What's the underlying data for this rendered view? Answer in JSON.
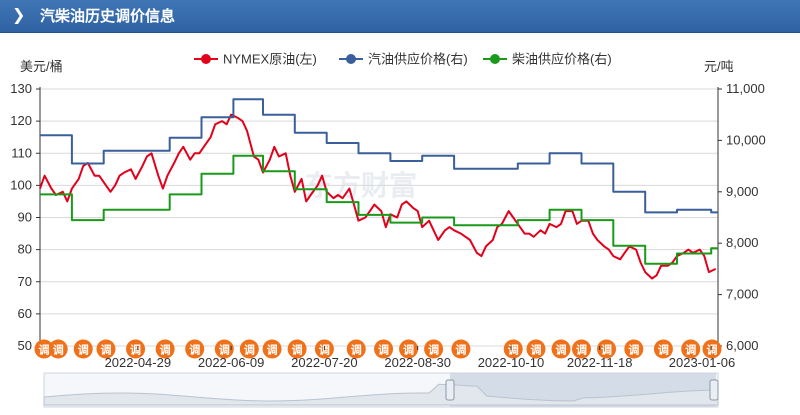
{
  "header": {
    "title": "汽柴油历史调价信息",
    "chevron_icon": "chevron-right-icon"
  },
  "colors": {
    "header": "#3170b3",
    "nymex": "#e3001b",
    "gasoline": "#3a5f9b",
    "diesel": "#1a9a1a",
    "grid": "#d9d9d9",
    "marker": "#f0711a"
  },
  "watermark": "东方财富",
  "marker_label": "调",
  "chart_data": {
    "type": "line",
    "left_axis": {
      "unit": "美元/桶",
      "ylim": [
        50,
        130
      ],
      "ticks": [
        50,
        60,
        70,
        80,
        90,
        100,
        110,
        120,
        130
      ]
    },
    "right_axis": {
      "unit": "元/吨",
      "ylim": [
        6000,
        11000
      ],
      "ticks": [
        "6,000",
        "7,000",
        "8,000",
        "9,000",
        "10,000",
        "11,000"
      ]
    },
    "x_labels": [
      "2022-04-29",
      "2022-06-09",
      "2022-07-20",
      "2022-08-30",
      "2022-10-10",
      "2022-11-18",
      "2023-01-06"
    ],
    "x_range": [
      "2022-03-17",
      "2023-01-09"
    ],
    "legend": {
      "position": "top",
      "items": [
        "NYMEX原油(左)",
        "汽油供应价格(右)",
        "柴油供应价格(右)"
      ]
    },
    "grid": true,
    "series": [
      {
        "name": "NYMEX原油(左)",
        "axis": "left",
        "shape": "line",
        "points": [
          [
            "2022-03-17",
            99
          ],
          [
            "2022-03-19",
            103
          ],
          [
            "2022-03-22",
            99
          ],
          [
            "2022-03-24",
            97
          ],
          [
            "2022-03-27",
            98
          ],
          [
            "2022-03-29",
            95
          ],
          [
            "2022-03-31",
            99
          ],
          [
            "2022-04-03",
            102
          ],
          [
            "2022-04-05",
            106
          ],
          [
            "2022-04-07",
            107
          ],
          [
            "2022-04-10",
            103
          ],
          [
            "2022-04-12",
            103
          ],
          [
            "2022-04-14",
            101
          ],
          [
            "2022-04-17",
            98
          ],
          [
            "2022-04-19",
            100
          ],
          [
            "2022-04-21",
            103
          ],
          [
            "2022-04-23",
            104
          ],
          [
            "2022-04-26",
            105
          ],
          [
            "2022-04-28",
            102
          ],
          [
            "2022-05-01",
            106
          ],
          [
            "2022-05-03",
            109
          ],
          [
            "2022-05-05",
            110
          ],
          [
            "2022-05-08",
            103
          ],
          [
            "2022-05-10",
            99
          ],
          [
            "2022-05-12",
            103
          ],
          [
            "2022-05-15",
            107
          ],
          [
            "2022-05-17",
            110
          ],
          [
            "2022-05-19",
            112
          ],
          [
            "2022-05-22",
            108
          ],
          [
            "2022-05-24",
            110
          ],
          [
            "2022-05-26",
            110
          ],
          [
            "2022-05-29",
            113
          ],
          [
            "2022-05-31",
            115
          ],
          [
            "2022-06-02",
            119
          ],
          [
            "2022-06-05",
            120
          ],
          [
            "2022-06-07",
            119
          ],
          [
            "2022-06-09",
            122
          ],
          [
            "2022-06-12",
            121
          ],
          [
            "2022-06-14",
            120
          ],
          [
            "2022-06-16",
            117
          ],
          [
            "2022-06-19",
            109
          ],
          [
            "2022-06-21",
            108
          ],
          [
            "2022-06-23",
            104
          ],
          [
            "2022-06-26",
            108
          ],
          [
            "2022-06-28",
            112
          ],
          [
            "2022-06-30",
            109
          ],
          [
            "2022-07-03",
            110
          ],
          [
            "2022-07-05",
            103
          ],
          [
            "2022-07-07",
            98
          ],
          [
            "2022-07-10",
            102
          ],
          [
            "2022-07-12",
            95
          ],
          [
            "2022-07-14",
            97
          ],
          [
            "2022-07-17",
            100
          ],
          [
            "2022-07-19",
            103
          ],
          [
            "2022-07-21",
            98
          ],
          [
            "2022-07-24",
            96
          ],
          [
            "2022-07-26",
            97
          ],
          [
            "2022-07-28",
            96
          ],
          [
            "2022-07-31",
            99
          ],
          [
            "2022-08-02",
            94
          ],
          [
            "2022-08-04",
            89
          ],
          [
            "2022-08-07",
            90
          ],
          [
            "2022-08-09",
            92
          ],
          [
            "2022-08-11",
            94
          ],
          [
            "2022-08-14",
            92
          ],
          [
            "2022-08-16",
            87
          ],
          [
            "2022-08-18",
            91
          ],
          [
            "2022-08-21",
            90
          ],
          [
            "2022-08-23",
            94
          ],
          [
            "2022-08-25",
            95
          ],
          [
            "2022-08-28",
            93
          ],
          [
            "2022-08-30",
            92
          ],
          [
            "2022-09-01",
            87
          ],
          [
            "2022-09-04",
            89
          ],
          [
            "2022-09-06",
            86
          ],
          [
            "2022-09-08",
            83
          ],
          [
            "2022-09-11",
            86
          ],
          [
            "2022-09-13",
            87
          ],
          [
            "2022-09-15",
            86
          ],
          [
            "2022-09-18",
            85
          ],
          [
            "2022-09-20",
            84
          ],
          [
            "2022-09-22",
            83
          ],
          [
            "2022-09-25",
            79
          ],
          [
            "2022-09-27",
            78
          ],
          [
            "2022-09-29",
            81
          ],
          [
            "2022-10-02",
            83
          ],
          [
            "2022-10-04",
            87
          ],
          [
            "2022-10-06",
            88
          ],
          [
            "2022-10-09",
            92
          ],
          [
            "2022-10-11",
            90
          ],
          [
            "2022-10-13",
            88
          ],
          [
            "2022-10-16",
            85
          ],
          [
            "2022-10-18",
            85
          ],
          [
            "2022-10-20",
            84
          ],
          [
            "2022-10-23",
            86
          ],
          [
            "2022-10-25",
            85
          ],
          [
            "2022-10-27",
            88
          ],
          [
            "2022-10-30",
            87
          ],
          [
            "2022-11-01",
            88
          ],
          [
            "2022-11-03",
            92
          ],
          [
            "2022-11-06",
            92
          ],
          [
            "2022-11-08",
            88
          ],
          [
            "2022-11-10",
            89
          ],
          [
            "2022-11-13",
            89
          ],
          [
            "2022-11-15",
            85
          ],
          [
            "2022-11-17",
            83
          ],
          [
            "2022-11-20",
            81
          ],
          [
            "2022-11-22",
            80
          ],
          [
            "2022-11-24",
            78
          ],
          [
            "2022-11-27",
            77
          ],
          [
            "2022-11-29",
            79
          ],
          [
            "2022-12-01",
            81
          ],
          [
            "2022-12-04",
            80
          ],
          [
            "2022-12-06",
            76
          ],
          [
            "2022-12-08",
            73
          ],
          [
            "2022-12-11",
            71
          ],
          [
            "2022-12-13",
            72
          ],
          [
            "2022-12-15",
            75
          ],
          [
            "2022-12-18",
            75
          ],
          [
            "2022-12-20",
            76
          ],
          [
            "2022-12-22",
            78
          ],
          [
            "2022-12-25",
            79
          ],
          [
            "2022-12-27",
            80
          ],
          [
            "2022-12-29",
            79
          ],
          [
            "2023-01-01",
            80
          ],
          [
            "2023-01-03",
            78
          ],
          [
            "2023-01-05",
            73
          ],
          [
            "2023-01-08",
            74
          ]
        ]
      },
      {
        "name": "汽油供应价格(右)",
        "axis": "right",
        "shape": "step",
        "points": [
          [
            "2022-03-17",
            10100
          ],
          [
            "2022-03-31",
            9550
          ],
          [
            "2022-04-14",
            9800
          ],
          [
            "2022-05-13",
            10050
          ],
          [
            "2022-05-27",
            10450
          ],
          [
            "2022-06-10",
            10800
          ],
          [
            "2022-06-23",
            10500
          ],
          [
            "2022-07-07",
            10150
          ],
          [
            "2022-07-21",
            9950
          ],
          [
            "2022-08-04",
            9750
          ],
          [
            "2022-08-18",
            9600
          ],
          [
            "2022-09-01",
            9700
          ],
          [
            "2022-09-15",
            9450
          ],
          [
            "2022-10-13",
            9550
          ],
          [
            "2022-10-27",
            9750
          ],
          [
            "2022-11-10",
            9550
          ],
          [
            "2022-11-24",
            9000
          ],
          [
            "2022-12-08",
            8600
          ],
          [
            "2022-12-22",
            8650
          ],
          [
            "2023-01-06",
            8600
          ]
        ]
      },
      {
        "name": "柴油供应价格(右)",
        "axis": "right",
        "shape": "step",
        "points": [
          [
            "2022-03-17",
            8950
          ],
          [
            "2022-03-31",
            8450
          ],
          [
            "2022-04-14",
            8650
          ],
          [
            "2022-05-13",
            8950
          ],
          [
            "2022-05-27",
            9350
          ],
          [
            "2022-06-10",
            9700
          ],
          [
            "2022-06-23",
            9400
          ],
          [
            "2022-07-07",
            9050
          ],
          [
            "2022-07-21",
            8800
          ],
          [
            "2022-08-04",
            8550
          ],
          [
            "2022-08-18",
            8400
          ],
          [
            "2022-09-01",
            8500
          ],
          [
            "2022-09-15",
            8350
          ],
          [
            "2022-10-13",
            8450
          ],
          [
            "2022-10-27",
            8650
          ],
          [
            "2022-11-10",
            8450
          ],
          [
            "2022-11-24",
            7950
          ],
          [
            "2022-12-08",
            7600
          ],
          [
            "2022-12-22",
            7800
          ],
          [
            "2023-01-06",
            7900
          ]
        ]
      }
    ],
    "adjustment_markers": [
      "2022-03-17",
      "2022-03-25",
      "2022-04-05",
      "2022-04-15",
      "2022-04-28",
      "2022-05-11",
      "2022-05-24",
      "2022-06-06",
      "2022-06-17",
      "2022-06-27",
      "2022-07-08",
      "2022-07-20",
      "2022-08-03",
      "2022-08-15",
      "2022-08-26",
      "2022-09-06",
      "2022-09-18",
      "2022-10-11",
      "2022-10-21",
      "2022-11-01",
      "2022-11-10",
      "2022-11-21",
      "2022-12-03",
      "2022-12-16",
      "2022-12-28",
      "2023-01-07"
    ],
    "navigator": {
      "selected_range": [
        "2022-03-17",
        "2023-01-09"
      ]
    }
  }
}
